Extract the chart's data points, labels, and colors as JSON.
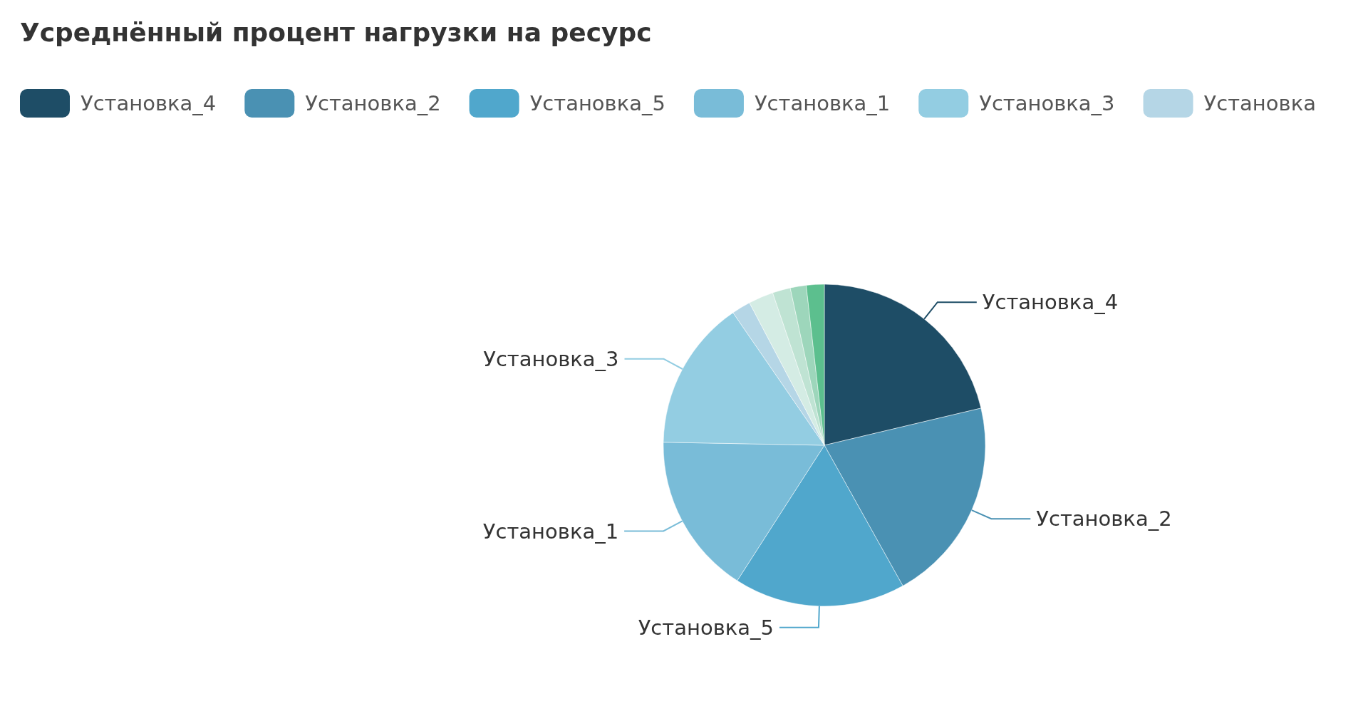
{
  "chart_data": {
    "type": "pie",
    "title": "Усреднённый процент нагрузки на ресурс",
    "categories": [
      "Установка_4",
      "Установка_2",
      "Установка_5",
      "Установка_1",
      "Установка_3",
      "Установка",
      null,
      null,
      null,
      null
    ],
    "values": [
      21.3,
      20.6,
      17.2,
      16.2,
      15.1,
      1.9,
      2.5,
      1.8,
      1.6,
      1.8
    ],
    "colors": [
      "#1e4d66",
      "#4a91b3",
      "#50a7cc",
      "#79bcd8",
      "#93cde2",
      "#b5d6e6",
      "#d4ece4",
      "#bfe3d3",
      "#9dd6bb",
      "#5cbf8e"
    ],
    "legend": "top left"
  }
}
